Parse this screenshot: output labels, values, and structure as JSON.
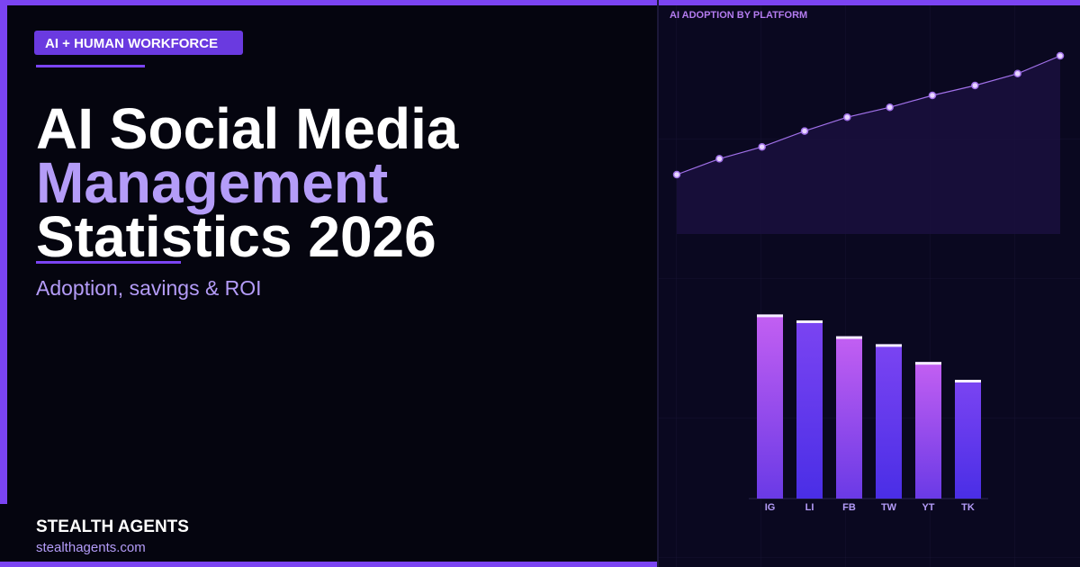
{
  "badge": "AI + HUMAN WORKFORCE",
  "title": {
    "line1": "AI Social Media",
    "line2": "Management",
    "line3": "Statistics 2026"
  },
  "subtitle": "Adoption, savings & ROI",
  "brand": "STEALTH AGENTS",
  "url": "stealthagents.com",
  "chart_data": [
    {
      "type": "line",
      "title": "AI ADOPTION BY PLATFORM",
      "categories": [
        null,
        null,
        null,
        null,
        null,
        null,
        null,
        null,
        null,
        null
      ],
      "values": [
        30,
        38,
        44,
        52,
        59,
        64,
        70,
        75,
        81,
        90
      ],
      "color": "#c79cf5",
      "ylim": [
        0,
        100
      ]
    },
    {
      "type": "bar",
      "categories": [
        "IG",
        "LI",
        "FB",
        "TW",
        "YT",
        "TK"
      ],
      "values": [
        93,
        90,
        82,
        78,
        69,
        60
      ],
      "colors": [
        "#c35ff2",
        "#7b44f2"
      ],
      "ylim": [
        0,
        100
      ]
    }
  ]
}
